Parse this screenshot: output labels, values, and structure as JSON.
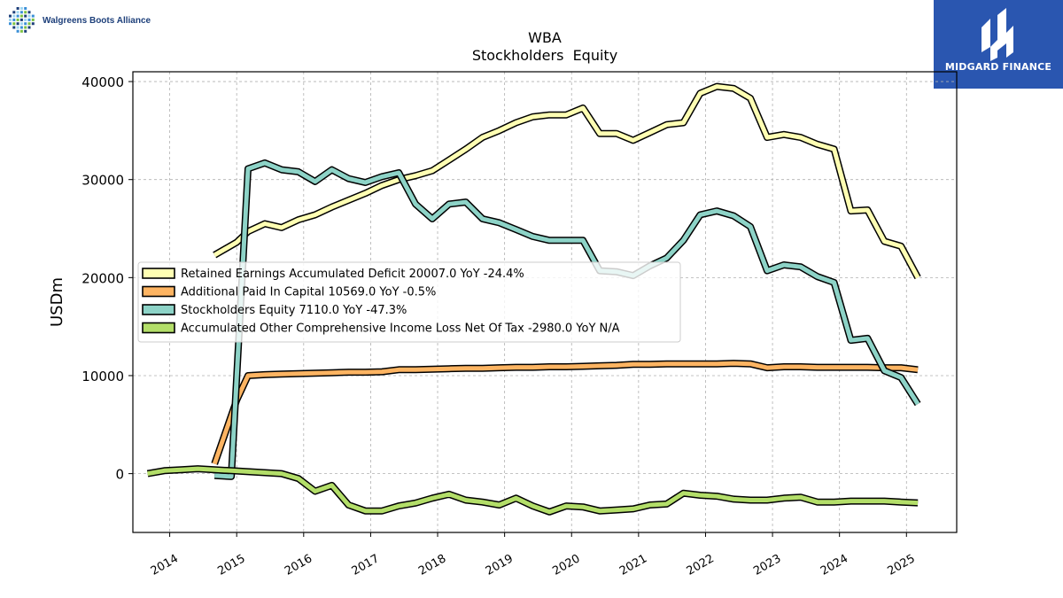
{
  "brand": {
    "company": "Walgreens Boots Alliance",
    "company_logo_icon": "dot-grid-logo-icon",
    "sponsor": "MIDGARD FINANCE",
    "sponsor_logo_icon": "mf-monogram-icon",
    "sponsor_color": "#2a56b0"
  },
  "chart_data": {
    "type": "line",
    "title": "WBA",
    "subtitle": "Stockholders  Equity",
    "ylabel": "USDm",
    "xlabel": "",
    "xlim": [
      2013.45,
      2025.75
    ],
    "ylim": [
      -6000,
      41000
    ],
    "yticks": [
      0,
      10000,
      20000,
      30000,
      40000
    ],
    "xticks": [
      2014,
      2015,
      2016,
      2017,
      2018,
      2019,
      2020,
      2021,
      2022,
      2023,
      2024,
      2025
    ],
    "grid": true,
    "legend_position": "center-left",
    "series": [
      {
        "name": "Retained Earnings Accumulated Deficit",
        "legend": "Retained Earnings Accumulated Deficit  20007.0 YoY -24.4%",
        "color": "#ffffb3",
        "x": [
          2014.67,
          2015.0,
          2015.17,
          2015.42,
          2015.67,
          2015.92,
          2016.17,
          2016.42,
          2016.67,
          2016.92,
          2017.17,
          2017.42,
          2017.67,
          2017.92,
          2018.17,
          2018.42,
          2018.67,
          2018.92,
          2019.17,
          2019.42,
          2019.67,
          2019.92,
          2020.17,
          2020.42,
          2020.67,
          2020.92,
          2021.17,
          2021.42,
          2021.67,
          2021.92,
          2022.17,
          2022.42,
          2022.67,
          2022.92,
          2023.17,
          2023.42,
          2023.67,
          2023.92,
          2024.17,
          2024.42,
          2024.67,
          2024.92,
          2025.17
        ],
        "y": [
          22300,
          23600,
          24700,
          25500,
          25100,
          25900,
          26400,
          27200,
          27900,
          28600,
          29400,
          30000,
          30400,
          30900,
          32000,
          33100,
          34300,
          35000,
          35800,
          36400,
          36600,
          36600,
          37300,
          34700,
          34700,
          34000,
          34800,
          35600,
          35800,
          38800,
          39500,
          39300,
          38300,
          34300,
          34600,
          34300,
          33600,
          33100,
          26800,
          26900,
          23700,
          23200,
          20000
        ]
      },
      {
        "name": "Additional Paid In Capital",
        "legend": "Additional Paid In Capital  10569.0 YoY -0.5%",
        "color": "#fdb462",
        "x": [
          2014.67,
          2015.0,
          2015.17,
          2015.42,
          2015.67,
          2015.92,
          2016.17,
          2016.42,
          2016.67,
          2016.92,
          2017.17,
          2017.42,
          2017.67,
          2017.92,
          2018.17,
          2018.42,
          2018.67,
          2018.92,
          2019.17,
          2019.42,
          2019.67,
          2019.92,
          2020.17,
          2020.42,
          2020.67,
          2020.92,
          2021.17,
          2021.42,
          2021.67,
          2021.92,
          2022.17,
          2022.42,
          2022.67,
          2022.92,
          2023.17,
          2023.42,
          2023.67,
          2023.92,
          2024.17,
          2024.42,
          2024.67,
          2024.92,
          2025.17
        ],
        "y": [
          1000,
          7500,
          10000,
          10100,
          10150,
          10200,
          10250,
          10300,
          10350,
          10350,
          10400,
          10600,
          10600,
          10650,
          10700,
          10750,
          10750,
          10800,
          10850,
          10850,
          10900,
          10900,
          10950,
          11000,
          11050,
          11150,
          11150,
          11200,
          11200,
          11200,
          11200,
          11250,
          11200,
          10800,
          10900,
          10900,
          10850,
          10850,
          10850,
          10850,
          10800,
          10800,
          10600
        ]
      },
      {
        "name": "Stockholders Equity",
        "legend": "Stockholders Equity  7110.0 YoY -47.3%",
        "color": "#8dd3c7",
        "x": [
          2014.67,
          2014.92,
          2015.17,
          2015.42,
          2015.67,
          2015.92,
          2016.17,
          2016.42,
          2016.67,
          2016.92,
          2017.17,
          2017.42,
          2017.67,
          2017.92,
          2018.17,
          2018.42,
          2018.67,
          2018.92,
          2019.17,
          2019.42,
          2019.67,
          2019.92,
          2020.17,
          2020.42,
          2020.67,
          2020.92,
          2021.17,
          2021.42,
          2021.67,
          2021.92,
          2022.17,
          2022.42,
          2022.67,
          2022.92,
          2023.17,
          2023.42,
          2023.67,
          2023.92,
          2024.17,
          2024.42,
          2024.67,
          2024.92,
          2025.17
        ],
        "y": [
          -200,
          -300,
          31100,
          31700,
          31000,
          30800,
          29800,
          31000,
          30100,
          29700,
          30300,
          30700,
          27500,
          26000,
          27500,
          27700,
          26000,
          25600,
          24900,
          24200,
          23800,
          23800,
          23800,
          20700,
          20600,
          20200,
          21200,
          22000,
          23800,
          26400,
          26800,
          26300,
          25200,
          20700,
          21300,
          21100,
          20100,
          19500,
          13600,
          13800,
          10500,
          9800,
          7110
        ]
      },
      {
        "name": "Accumulated Other Comprehensive Income Loss Net Of Tax",
        "legend": "Accumulated Other Comprehensive Income Loss Net Of Tax  -2980.0 YoY N/A",
        "color": "#b3de69",
        "x": [
          2013.67,
          2013.92,
          2014.17,
          2014.42,
          2014.67,
          2014.92,
          2015.17,
          2015.42,
          2015.67,
          2015.92,
          2016.17,
          2016.42,
          2016.67,
          2016.92,
          2017.17,
          2017.42,
          2017.67,
          2017.92,
          2018.17,
          2018.42,
          2018.67,
          2018.92,
          2019.17,
          2019.42,
          2019.67,
          2019.92,
          2020.17,
          2020.42,
          2020.67,
          2020.92,
          2021.17,
          2021.42,
          2021.67,
          2021.92,
          2022.17,
          2022.42,
          2022.67,
          2022.92,
          2023.17,
          2023.42,
          2023.67,
          2023.92,
          2024.17,
          2024.42,
          2024.67,
          2024.92,
          2025.17
        ],
        "y": [
          0,
          300,
          400,
          500,
          400,
          300,
          200,
          100,
          0,
          -500,
          -1800,
          -1200,
          -3200,
          -3800,
          -3800,
          -3300,
          -3000,
          -2500,
          -2100,
          -2700,
          -2900,
          -3200,
          -2500,
          -3300,
          -3900,
          -3300,
          -3400,
          -3800,
          -3700,
          -3600,
          -3200,
          -3100,
          -2000,
          -2200,
          -2300,
          -2600,
          -2700,
          -2700,
          -2500,
          -2400,
          -2900,
          -2900,
          -2800,
          -2800,
          -2800,
          -2900,
          -2980
        ]
      }
    ]
  }
}
